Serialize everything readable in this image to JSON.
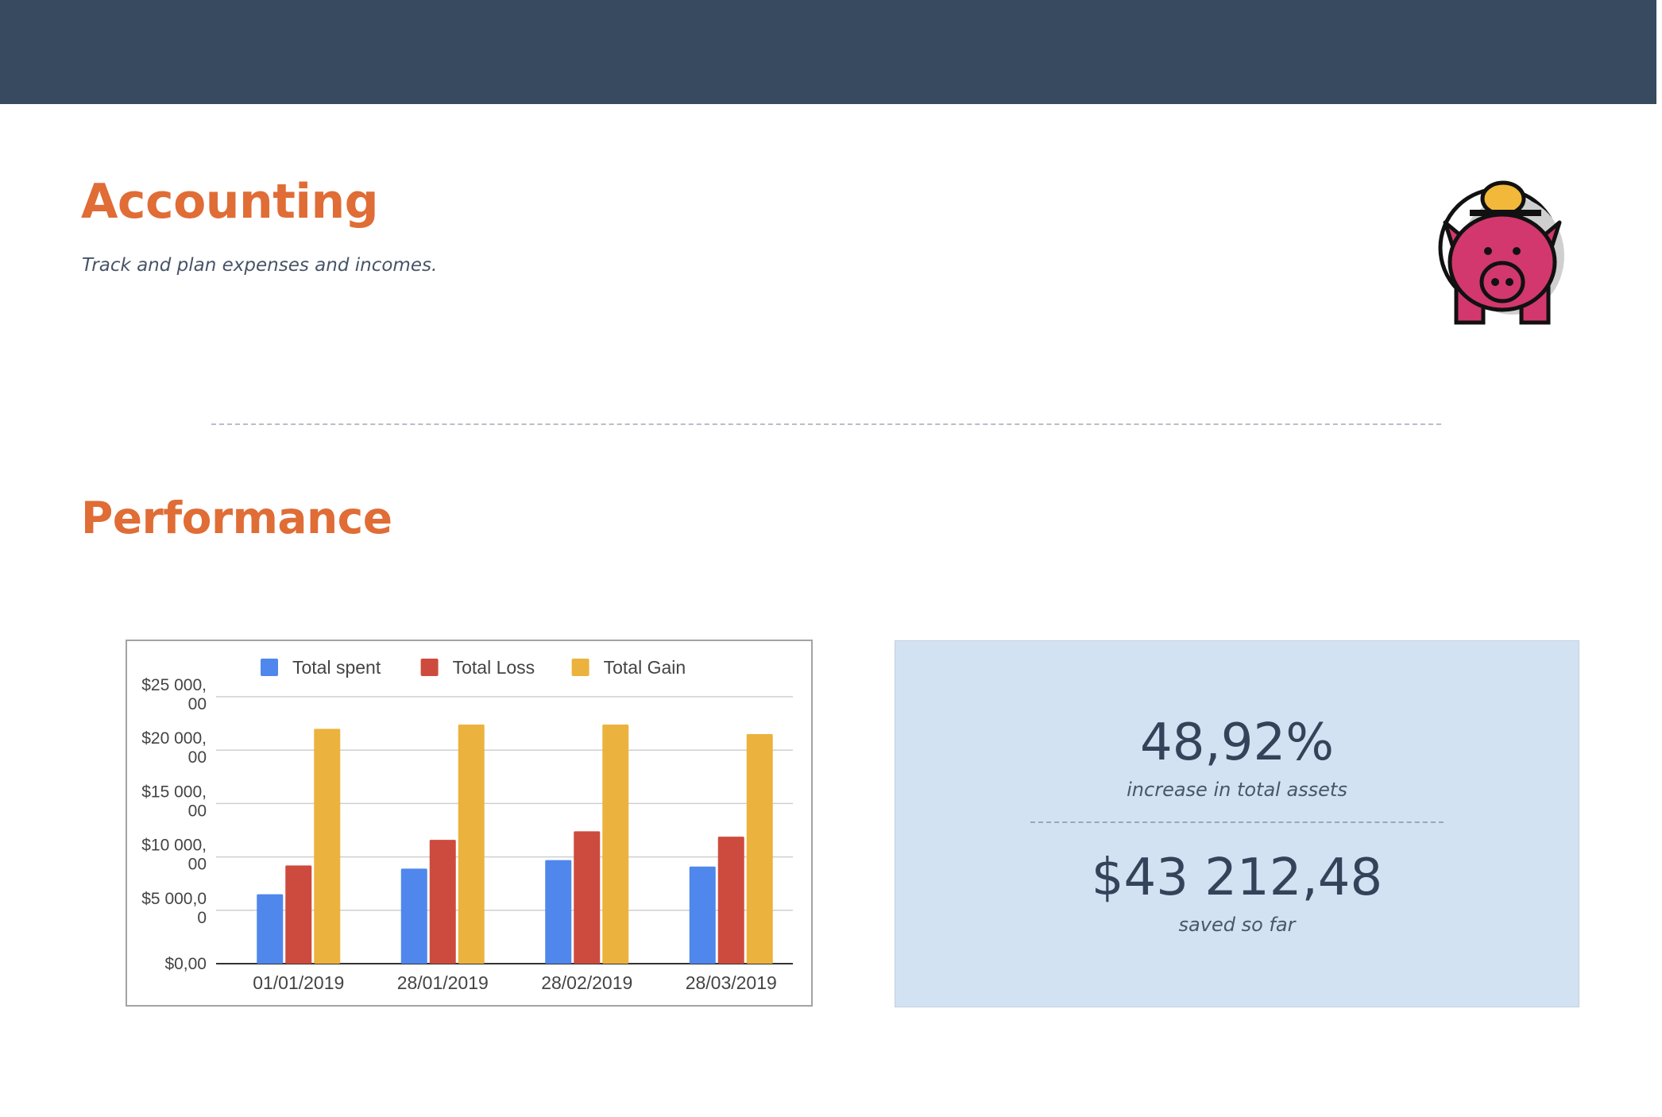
{
  "header": {
    "title": "Accounting",
    "subtitle": "Track and plan expenses and incomes.",
    "logo_icon": "piggy-bank-icon"
  },
  "performance": {
    "title": "Performance"
  },
  "stats": {
    "percent_value": "48,92%",
    "percent_label": "increase in total assets",
    "saved_value": "$43 212,48",
    "saved_label": "saved so far"
  },
  "colors": {
    "topbar": "#384a60",
    "heading": "#e06c36",
    "stats_bg": "#d2e2f2",
    "spent": "#4f87ec",
    "loss": "#cd4b3e",
    "gain": "#ebb33d"
  },
  "chart_data": {
    "type": "bar",
    "categories": [
      "01/01/2019",
      "28/01/2019",
      "28/02/2019",
      "28/03/2019"
    ],
    "series": [
      {
        "name": "Total spent",
        "color": "#4f87ec",
        "values": [
          6500,
          8900,
          9700,
          9100
        ]
      },
      {
        "name": "Total Loss",
        "color": "#cd4b3e",
        "values": [
          9200,
          11600,
          12400,
          11900
        ]
      },
      {
        "name": "Total Gain",
        "color": "#ebb33d",
        "values": [
          22000,
          22400,
          22400,
          21500
        ]
      }
    ],
    "y_ticks": [
      {
        "value": 0,
        "label": [
          "$0,00"
        ]
      },
      {
        "value": 5000,
        "label": [
          "$5 000,0",
          "0"
        ]
      },
      {
        "value": 10000,
        "label": [
          "$10 000,",
          "00"
        ]
      },
      {
        "value": 15000,
        "label": [
          "$15 000,",
          "00"
        ]
      },
      {
        "value": 20000,
        "label": [
          "$20 000,",
          "00"
        ]
      },
      {
        "value": 25000,
        "label": [
          "$25 000,",
          "00"
        ]
      }
    ],
    "ylim": [
      0,
      25000
    ],
    "legend_position": "top",
    "grid": true
  }
}
